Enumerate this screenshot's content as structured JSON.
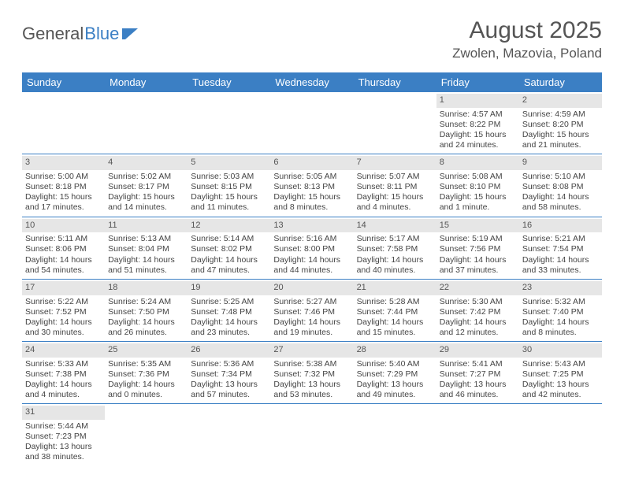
{
  "logo": {
    "text_gray": "General",
    "text_blue": "Blue"
  },
  "title": "August 2025",
  "location": "Zwolen, Mazovia, Poland",
  "colors": {
    "header_bg": "#3b7fc4",
    "header_text": "#ffffff",
    "daynum_bg": "#e6e6e6",
    "row_border": "#3b7fc4",
    "body_text": "#444444",
    "title_text": "#555555"
  },
  "day_names": [
    "Sunday",
    "Monday",
    "Tuesday",
    "Wednesday",
    "Thursday",
    "Friday",
    "Saturday"
  ],
  "weeks": [
    [
      {
        "blank": true
      },
      {
        "blank": true
      },
      {
        "blank": true
      },
      {
        "blank": true
      },
      {
        "blank": true
      },
      {
        "day": "1",
        "sunrise": "Sunrise: 4:57 AM",
        "sunset": "Sunset: 8:22 PM",
        "dl1": "Daylight: 15 hours",
        "dl2": "and 24 minutes."
      },
      {
        "day": "2",
        "sunrise": "Sunrise: 4:59 AM",
        "sunset": "Sunset: 8:20 PM",
        "dl1": "Daylight: 15 hours",
        "dl2": "and 21 minutes."
      }
    ],
    [
      {
        "day": "3",
        "sunrise": "Sunrise: 5:00 AM",
        "sunset": "Sunset: 8:18 PM",
        "dl1": "Daylight: 15 hours",
        "dl2": "and 17 minutes."
      },
      {
        "day": "4",
        "sunrise": "Sunrise: 5:02 AM",
        "sunset": "Sunset: 8:17 PM",
        "dl1": "Daylight: 15 hours",
        "dl2": "and 14 minutes."
      },
      {
        "day": "5",
        "sunrise": "Sunrise: 5:03 AM",
        "sunset": "Sunset: 8:15 PM",
        "dl1": "Daylight: 15 hours",
        "dl2": "and 11 minutes."
      },
      {
        "day": "6",
        "sunrise": "Sunrise: 5:05 AM",
        "sunset": "Sunset: 8:13 PM",
        "dl1": "Daylight: 15 hours",
        "dl2": "and 8 minutes."
      },
      {
        "day": "7",
        "sunrise": "Sunrise: 5:07 AM",
        "sunset": "Sunset: 8:11 PM",
        "dl1": "Daylight: 15 hours",
        "dl2": "and 4 minutes."
      },
      {
        "day": "8",
        "sunrise": "Sunrise: 5:08 AM",
        "sunset": "Sunset: 8:10 PM",
        "dl1": "Daylight: 15 hours",
        "dl2": "and 1 minute."
      },
      {
        "day": "9",
        "sunrise": "Sunrise: 5:10 AM",
        "sunset": "Sunset: 8:08 PM",
        "dl1": "Daylight: 14 hours",
        "dl2": "and 58 minutes."
      }
    ],
    [
      {
        "day": "10",
        "sunrise": "Sunrise: 5:11 AM",
        "sunset": "Sunset: 8:06 PM",
        "dl1": "Daylight: 14 hours",
        "dl2": "and 54 minutes."
      },
      {
        "day": "11",
        "sunrise": "Sunrise: 5:13 AM",
        "sunset": "Sunset: 8:04 PM",
        "dl1": "Daylight: 14 hours",
        "dl2": "and 51 minutes."
      },
      {
        "day": "12",
        "sunrise": "Sunrise: 5:14 AM",
        "sunset": "Sunset: 8:02 PM",
        "dl1": "Daylight: 14 hours",
        "dl2": "and 47 minutes."
      },
      {
        "day": "13",
        "sunrise": "Sunrise: 5:16 AM",
        "sunset": "Sunset: 8:00 PM",
        "dl1": "Daylight: 14 hours",
        "dl2": "and 44 minutes."
      },
      {
        "day": "14",
        "sunrise": "Sunrise: 5:17 AM",
        "sunset": "Sunset: 7:58 PM",
        "dl1": "Daylight: 14 hours",
        "dl2": "and 40 minutes."
      },
      {
        "day": "15",
        "sunrise": "Sunrise: 5:19 AM",
        "sunset": "Sunset: 7:56 PM",
        "dl1": "Daylight: 14 hours",
        "dl2": "and 37 minutes."
      },
      {
        "day": "16",
        "sunrise": "Sunrise: 5:21 AM",
        "sunset": "Sunset: 7:54 PM",
        "dl1": "Daylight: 14 hours",
        "dl2": "and 33 minutes."
      }
    ],
    [
      {
        "day": "17",
        "sunrise": "Sunrise: 5:22 AM",
        "sunset": "Sunset: 7:52 PM",
        "dl1": "Daylight: 14 hours",
        "dl2": "and 30 minutes."
      },
      {
        "day": "18",
        "sunrise": "Sunrise: 5:24 AM",
        "sunset": "Sunset: 7:50 PM",
        "dl1": "Daylight: 14 hours",
        "dl2": "and 26 minutes."
      },
      {
        "day": "19",
        "sunrise": "Sunrise: 5:25 AM",
        "sunset": "Sunset: 7:48 PM",
        "dl1": "Daylight: 14 hours",
        "dl2": "and 23 minutes."
      },
      {
        "day": "20",
        "sunrise": "Sunrise: 5:27 AM",
        "sunset": "Sunset: 7:46 PM",
        "dl1": "Daylight: 14 hours",
        "dl2": "and 19 minutes."
      },
      {
        "day": "21",
        "sunrise": "Sunrise: 5:28 AM",
        "sunset": "Sunset: 7:44 PM",
        "dl1": "Daylight: 14 hours",
        "dl2": "and 15 minutes."
      },
      {
        "day": "22",
        "sunrise": "Sunrise: 5:30 AM",
        "sunset": "Sunset: 7:42 PM",
        "dl1": "Daylight: 14 hours",
        "dl2": "and 12 minutes."
      },
      {
        "day": "23",
        "sunrise": "Sunrise: 5:32 AM",
        "sunset": "Sunset: 7:40 PM",
        "dl1": "Daylight: 14 hours",
        "dl2": "and 8 minutes."
      }
    ],
    [
      {
        "day": "24",
        "sunrise": "Sunrise: 5:33 AM",
        "sunset": "Sunset: 7:38 PM",
        "dl1": "Daylight: 14 hours",
        "dl2": "and 4 minutes."
      },
      {
        "day": "25",
        "sunrise": "Sunrise: 5:35 AM",
        "sunset": "Sunset: 7:36 PM",
        "dl1": "Daylight: 14 hours",
        "dl2": "and 0 minutes."
      },
      {
        "day": "26",
        "sunrise": "Sunrise: 5:36 AM",
        "sunset": "Sunset: 7:34 PM",
        "dl1": "Daylight: 13 hours",
        "dl2": "and 57 minutes."
      },
      {
        "day": "27",
        "sunrise": "Sunrise: 5:38 AM",
        "sunset": "Sunset: 7:32 PM",
        "dl1": "Daylight: 13 hours",
        "dl2": "and 53 minutes."
      },
      {
        "day": "28",
        "sunrise": "Sunrise: 5:40 AM",
        "sunset": "Sunset: 7:29 PM",
        "dl1": "Daylight: 13 hours",
        "dl2": "and 49 minutes."
      },
      {
        "day": "29",
        "sunrise": "Sunrise: 5:41 AM",
        "sunset": "Sunset: 7:27 PM",
        "dl1": "Daylight: 13 hours",
        "dl2": "and 46 minutes."
      },
      {
        "day": "30",
        "sunrise": "Sunrise: 5:43 AM",
        "sunset": "Sunset: 7:25 PM",
        "dl1": "Daylight: 13 hours",
        "dl2": "and 42 minutes."
      }
    ],
    [
      {
        "day": "31",
        "sunrise": "Sunrise: 5:44 AM",
        "sunset": "Sunset: 7:23 PM",
        "dl1": "Daylight: 13 hours",
        "dl2": "and 38 minutes."
      },
      {
        "blank": true
      },
      {
        "blank": true
      },
      {
        "blank": true
      },
      {
        "blank": true
      },
      {
        "blank": true
      },
      {
        "blank": true
      }
    ]
  ]
}
